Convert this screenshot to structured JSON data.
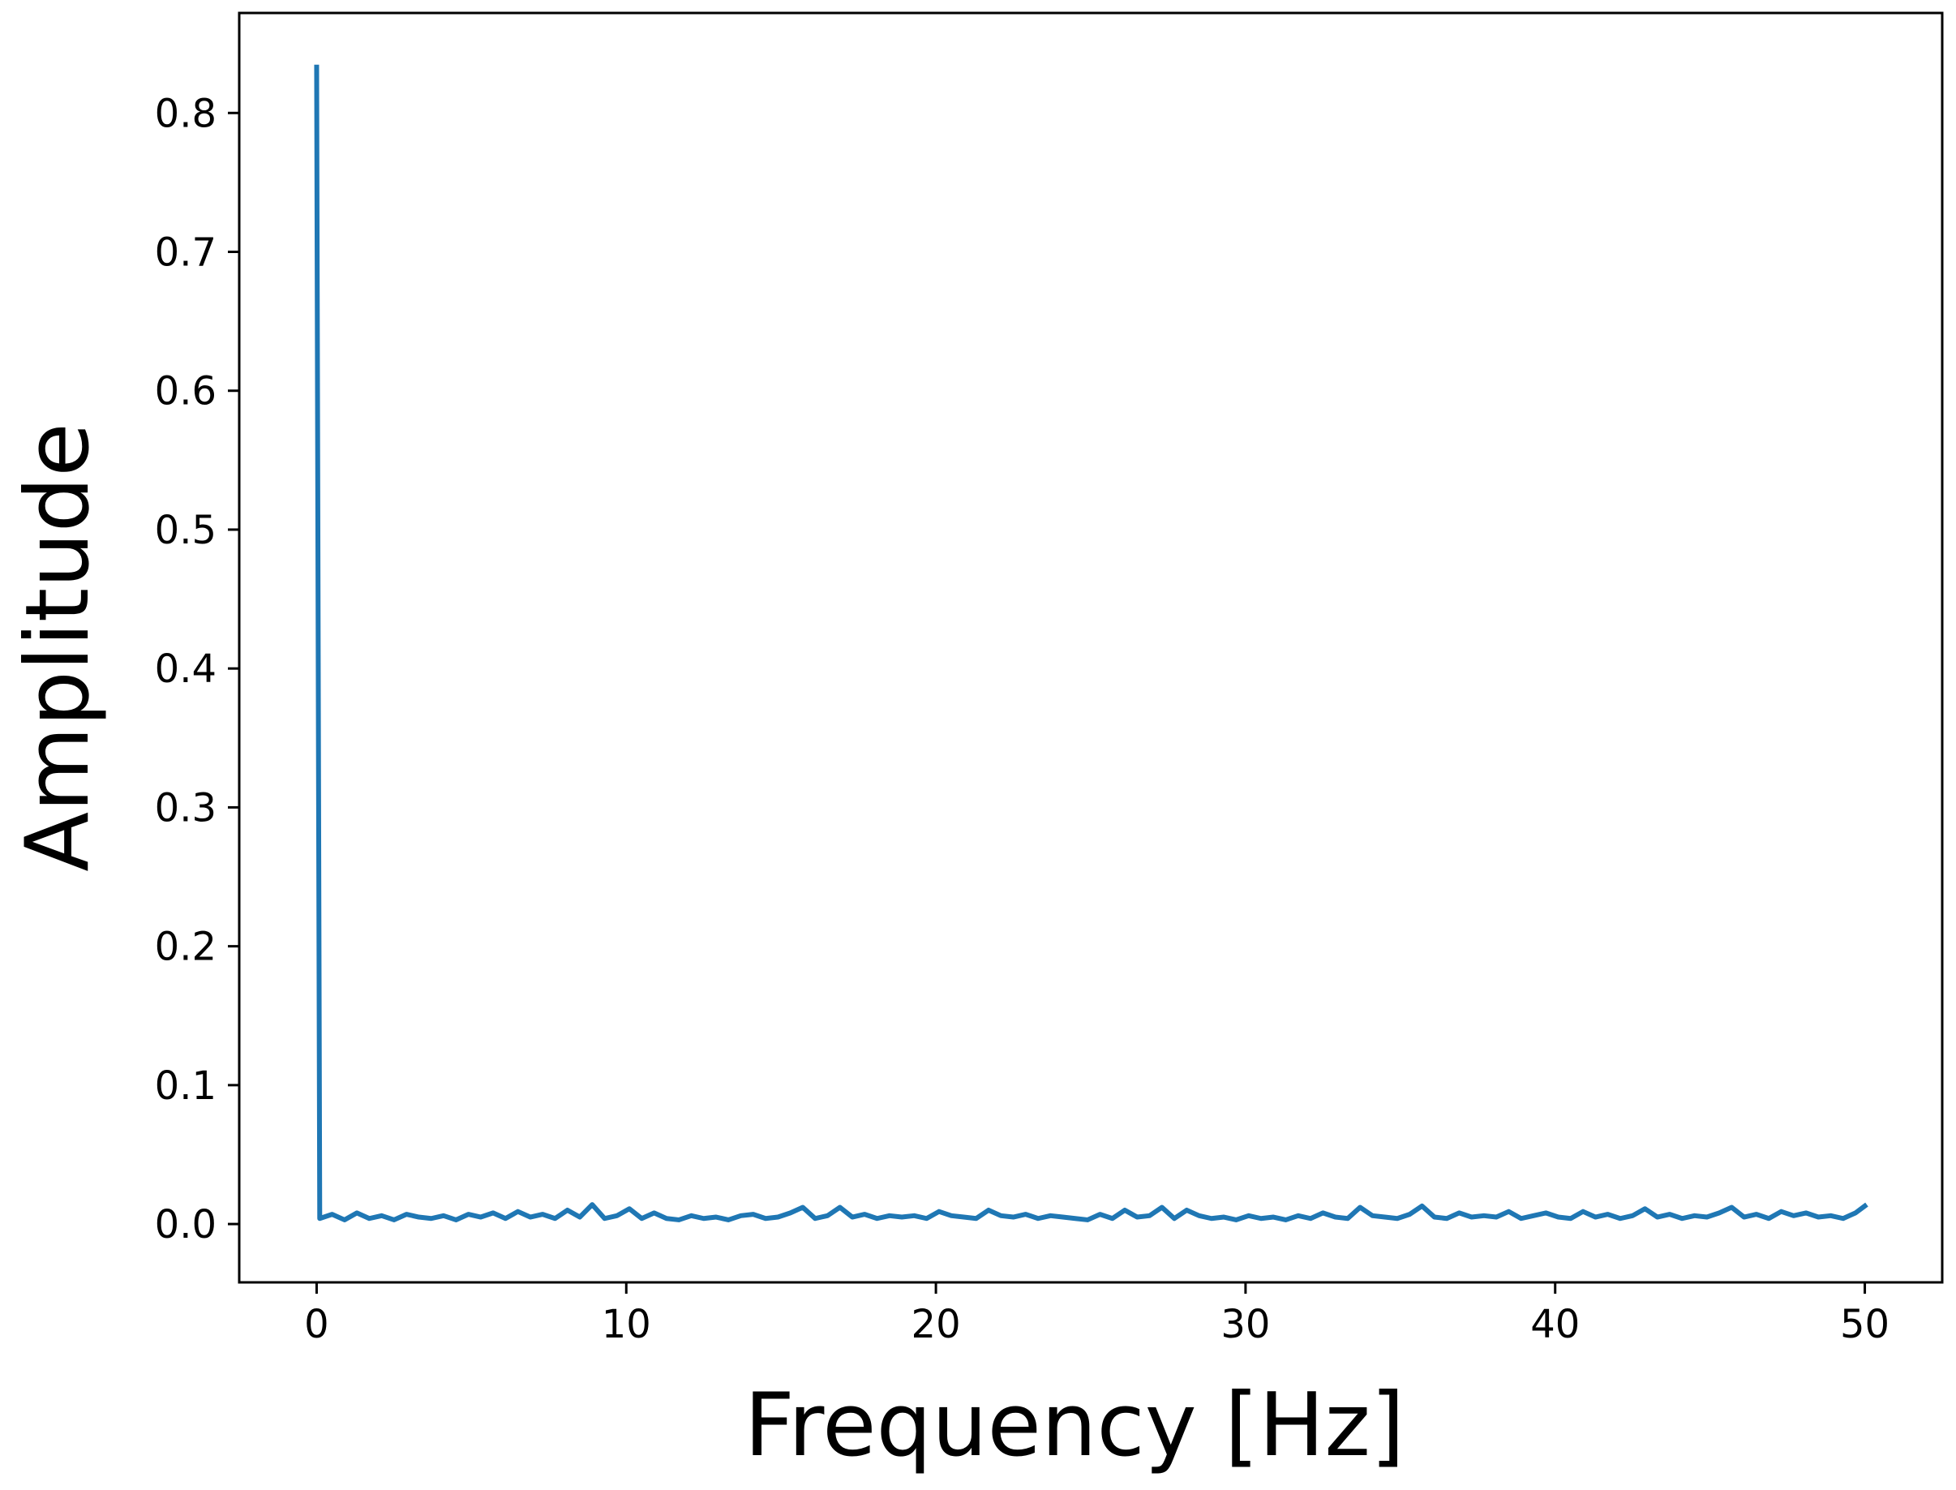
{
  "chart_data": {
    "type": "line",
    "title": "",
    "xlabel": "Frequency [Hz]",
    "ylabel": "Amplitude",
    "xlim": [
      -2.5,
      52.5
    ],
    "ylim": [
      -0.042,
      0.872
    ],
    "xticks": [
      0,
      10,
      20,
      30,
      40,
      50
    ],
    "xtick_labels": [
      "0",
      "10",
      "20",
      "30",
      "40",
      "50"
    ],
    "yticks": [
      0.0,
      0.1,
      0.2,
      0.3,
      0.4,
      0.5,
      0.6,
      0.7,
      0.8
    ],
    "ytick_labels": [
      "0.0",
      "0.1",
      "0.2",
      "0.3",
      "0.4",
      "0.5",
      "0.6",
      "0.7",
      "0.8"
    ],
    "grid": false,
    "series": [
      {
        "color": "#1f77b4",
        "x": [
          0,
          0.1,
          0.5,
          0.9,
          1.3,
          1.7,
          2.1,
          2.5,
          2.9,
          3.3,
          3.7,
          4.1,
          4.5,
          4.9,
          5.3,
          5.7,
          6.1,
          6.5,
          6.9,
          7.3,
          7.7,
          8.1,
          8.5,
          8.9,
          9.3,
          9.7,
          10.1,
          10.5,
          10.9,
          11.3,
          11.7,
          12.1,
          12.5,
          12.9,
          13.3,
          13.7,
          14.1,
          14.5,
          14.9,
          15.3,
          15.7,
          16.1,
          16.5,
          16.9,
          17.3,
          17.7,
          18.1,
          18.5,
          18.9,
          19.3,
          19.7,
          20.1,
          20.5,
          20.9,
          21.3,
          21.7,
          22.1,
          22.5,
          22.9,
          23.3,
          23.7,
          24.1,
          24.5,
          24.9,
          25.3,
          25.7,
          26.1,
          26.5,
          26.9,
          27.3,
          27.7,
          28.1,
          28.5,
          28.9,
          29.3,
          29.7,
          30.1,
          30.5,
          30.9,
          31.3,
          31.7,
          32.1,
          32.5,
          32.9,
          33.3,
          33.7,
          34.1,
          34.5,
          34.9,
          35.3,
          35.7,
          36.1,
          36.5,
          36.9,
          37.3,
          37.7,
          38.1,
          38.5,
          38.9,
          39.3,
          39.7,
          40.1,
          40.5,
          40.9,
          41.3,
          41.7,
          42.1,
          42.5,
          42.9,
          43.3,
          43.7,
          44.1,
          44.5,
          44.9,
          45.3,
          45.7,
          46.1,
          46.5,
          46.9,
          47.3,
          47.7,
          48.1,
          48.5,
          48.9,
          49.3,
          49.7,
          50.0
        ],
        "y": [
          0.833,
          0.004,
          0.007,
          0.003,
          0.008,
          0.004,
          0.006,
          0.003,
          0.007,
          0.005,
          0.004,
          0.006,
          0.003,
          0.007,
          0.005,
          0.008,
          0.004,
          0.009,
          0.005,
          0.007,
          0.004,
          0.01,
          0.005,
          0.014,
          0.004,
          0.006,
          0.011,
          0.004,
          0.008,
          0.004,
          0.003,
          0.006,
          0.004,
          0.005,
          0.003,
          0.006,
          0.007,
          0.004,
          0.005,
          0.008,
          0.012,
          0.004,
          0.006,
          0.012,
          0.005,
          0.007,
          0.004,
          0.006,
          0.005,
          0.006,
          0.004,
          0.009,
          0.006,
          0.005,
          0.004,
          0.01,
          0.006,
          0.005,
          0.007,
          0.004,
          0.006,
          0.005,
          0.004,
          0.003,
          0.007,
          0.004,
          0.01,
          0.005,
          0.006,
          0.012,
          0.004,
          0.01,
          0.006,
          0.004,
          0.005,
          0.003,
          0.006,
          0.004,
          0.005,
          0.003,
          0.006,
          0.004,
          0.008,
          0.005,
          0.004,
          0.012,
          0.006,
          0.005,
          0.004,
          0.007,
          0.013,
          0.005,
          0.004,
          0.008,
          0.005,
          0.006,
          0.005,
          0.009,
          0.004,
          0.006,
          0.008,
          0.005,
          0.004,
          0.009,
          0.005,
          0.007,
          0.004,
          0.006,
          0.011,
          0.005,
          0.007,
          0.004,
          0.006,
          0.005,
          0.008,
          0.012,
          0.005,
          0.007,
          0.004,
          0.009,
          0.006,
          0.008,
          0.005,
          0.006,
          0.004,
          0.008,
          0.013
        ]
      }
    ]
  }
}
